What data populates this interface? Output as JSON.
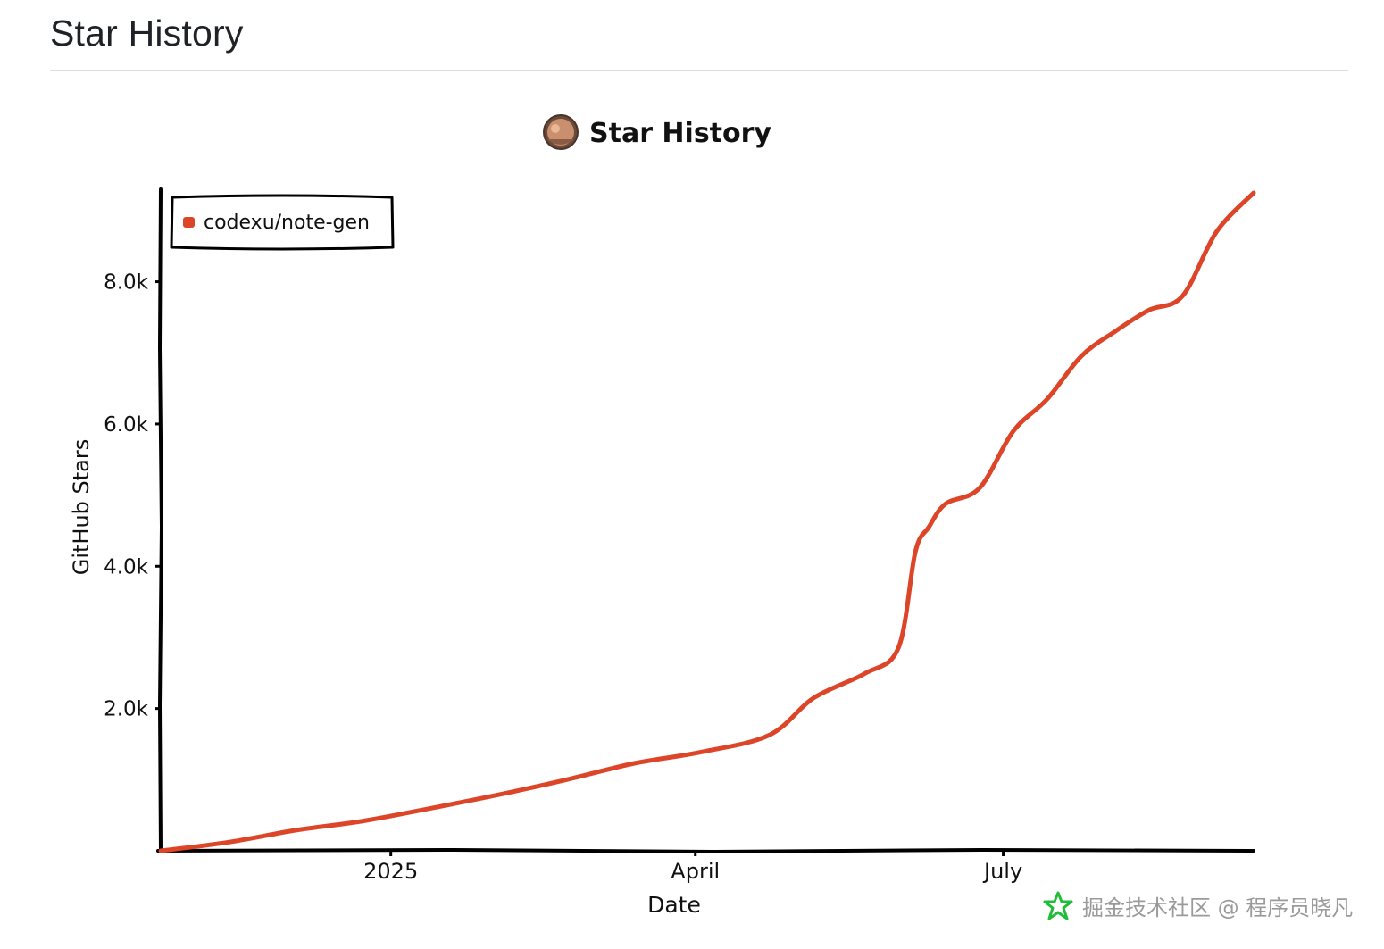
{
  "page": {
    "heading": "Star History"
  },
  "chart_header": {
    "title": "Star History",
    "avatar_icon": "user-avatar-icon"
  },
  "watermark": {
    "text": "掘金技术社区 @ 程序员晓凡",
    "icon": "juejin-logo-icon",
    "color": "#1fbd3a"
  },
  "chart_data": {
    "type": "line",
    "title": "Star History",
    "xlabel": "Date",
    "ylabel": "GitHub Stars",
    "x_ticks": [
      {
        "date": "2025-01-01",
        "label": "2025"
      },
      {
        "date": "2025-04-01",
        "label": "April"
      },
      {
        "date": "2025-07-01",
        "label": "July"
      }
    ],
    "y_ticks": [
      {
        "value": 2000,
        "label": "2.0k"
      },
      {
        "value": 4000,
        "label": "4.0k"
      },
      {
        "value": 6000,
        "label": "6.0k"
      },
      {
        "value": 8000,
        "label": "8.0k"
      }
    ],
    "xlim": [
      "2024-10-25",
      "2025-09-13"
    ],
    "ylim": [
      0,
      9300
    ],
    "grid": false,
    "legend": {
      "position": "top-left"
    },
    "series": [
      {
        "name": "codexu/note-gen",
        "color": "#dd4528",
        "x": [
          "2024-10-25",
          "2024-11-14",
          "2024-12-04",
          "2024-12-24",
          "2025-01-13",
          "2025-02-02",
          "2025-02-22",
          "2025-03-14",
          "2025-04-03",
          "2025-04-23",
          "2025-05-06",
          "2025-05-21",
          "2025-05-31",
          "2025-06-05",
          "2025-06-09",
          "2025-06-14",
          "2025-06-24",
          "2025-07-04",
          "2025-07-14",
          "2025-07-24",
          "2025-08-03",
          "2025-08-13",
          "2025-08-23",
          "2025-09-02",
          "2025-09-13"
        ],
        "y": [
          0,
          120,
          290,
          420,
          600,
          790,
          1000,
          1230,
          1390,
          1630,
          2150,
          2490,
          2850,
          4200,
          4550,
          4880,
          5100,
          5900,
          6350,
          6950,
          7300,
          7600,
          7800,
          8700,
          9250
        ]
      }
    ]
  }
}
